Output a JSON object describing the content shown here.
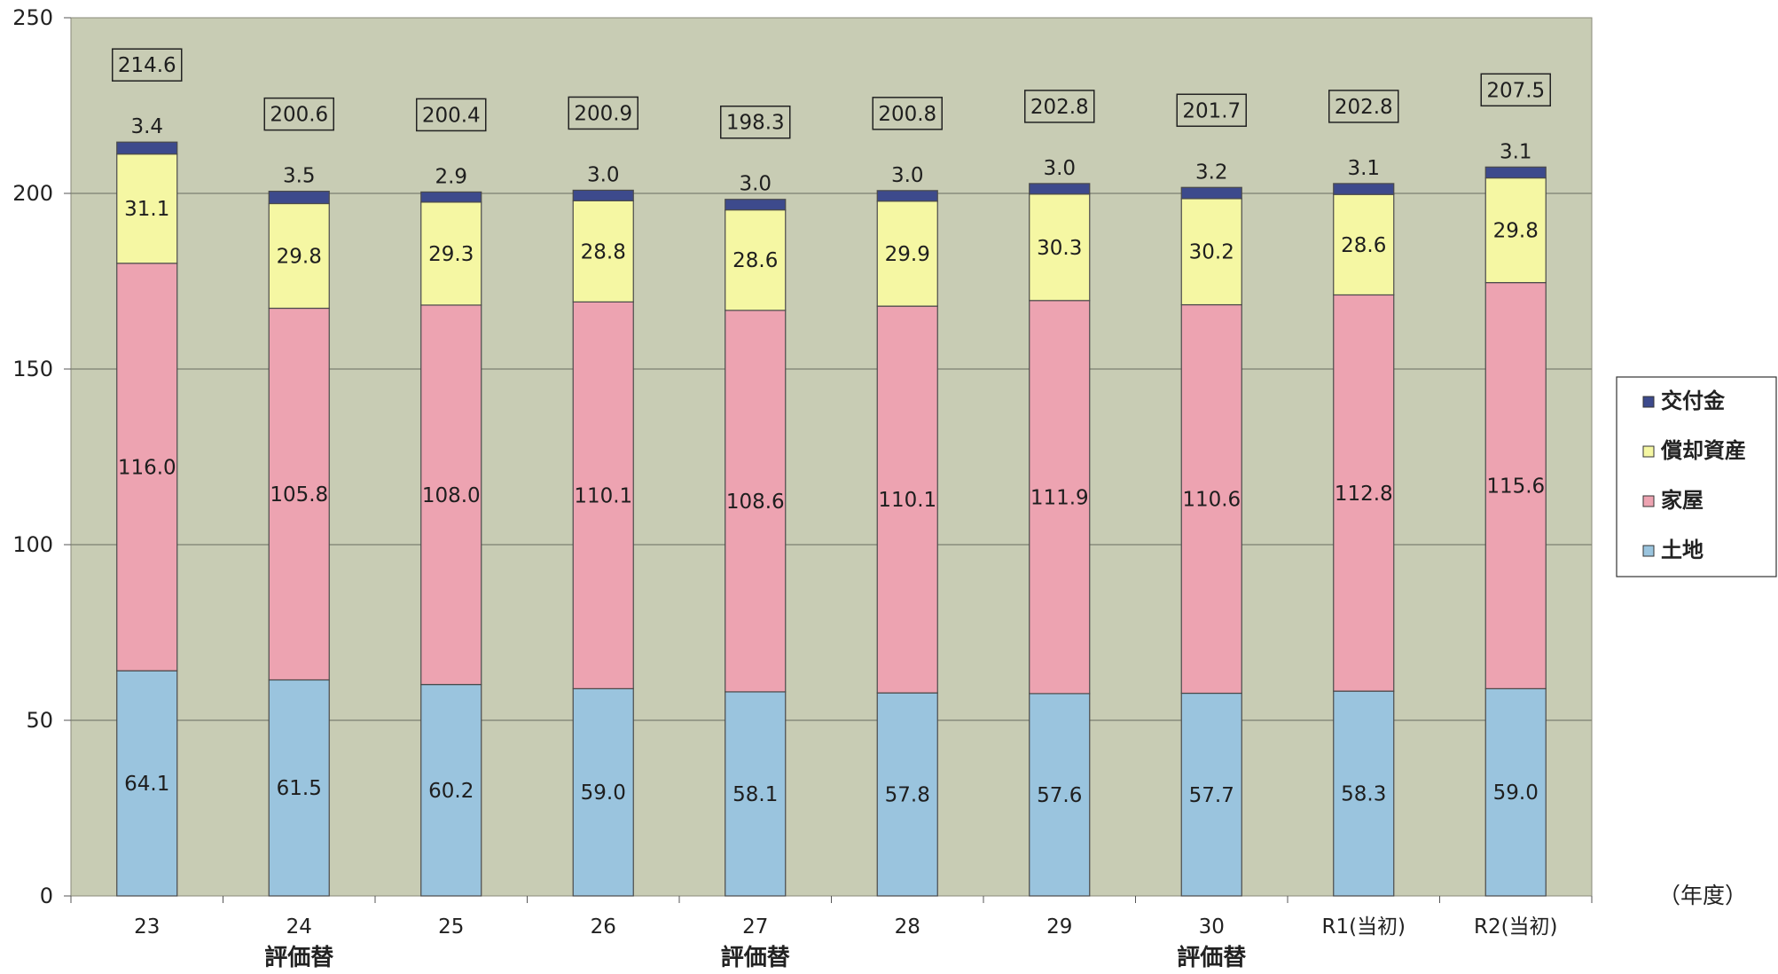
{
  "chart_data": {
    "type": "bar",
    "stacked": true,
    "categories": [
      "23",
      "24",
      "25",
      "26",
      "27",
      "28",
      "29",
      "30",
      "R1(当初)",
      "R2(当初)"
    ],
    "category_notes": [
      "",
      "評価替",
      "",
      "",
      "評価替",
      "",
      "",
      "評価替",
      "",
      ""
    ],
    "series": [
      {
        "name": "土地",
        "color": "#9ac4de",
        "values": [
          64.1,
          61.5,
          60.2,
          59.0,
          58.1,
          57.8,
          57.6,
          57.7,
          58.3,
          59.0
        ]
      },
      {
        "name": "家屋",
        "color": "#eda3b1",
        "values": [
          116.0,
          105.8,
          108.0,
          110.1,
          108.6,
          110.1,
          111.9,
          110.6,
          112.8,
          115.6
        ]
      },
      {
        "name": "償却資産",
        "color": "#f5f7a3",
        "values": [
          31.1,
          29.8,
          29.3,
          28.8,
          28.6,
          29.9,
          30.3,
          30.2,
          28.6,
          29.8
        ]
      },
      {
        "name": "交付金",
        "color": "#3d4a8c",
        "values": [
          3.4,
          3.5,
          2.9,
          3.0,
          3.0,
          3.0,
          3.0,
          3.2,
          3.1,
          3.1
        ]
      }
    ],
    "totals": [
      214.6,
      200.6,
      200.4,
      200.9,
      198.3,
      200.8,
      202.8,
      201.7,
      202.8,
      207.5
    ],
    "segment_labels": [
      [
        "64.1",
        "116.0",
        "31.1",
        "3.4"
      ],
      [
        "61.5",
        "105.8",
        "29.8",
        "3.5"
      ],
      [
        "60.2",
        "108.0",
        "29.3",
        "2.9"
      ],
      [
        "59.0",
        "110.1",
        "28.8",
        "3.0"
      ],
      [
        "58.1",
        "108.6",
        "28.6",
        "3.0"
      ],
      [
        "57.8",
        "110.1",
        "29.9",
        "3.0"
      ],
      [
        "57.6",
        "111.9",
        "30.3",
        "3.0"
      ],
      [
        "57.7",
        "110.6",
        "30.2",
        "3.2"
      ],
      [
        "58.3",
        "112.8",
        "28.6",
        "3.1"
      ],
      [
        "59.0",
        "115.6",
        "29.8",
        "3.1"
      ]
    ],
    "total_labels": [
      "214.6",
      "200.6",
      "200.4",
      "200.9",
      "198.3",
      "200.8",
      "202.8",
      "201.7",
      "202.8",
      "207.5"
    ],
    "ylim": [
      0,
      250
    ],
    "yticks": [
      0,
      50,
      100,
      150,
      200,
      250
    ],
    "xlabel": "（年度）",
    "ylabel": "",
    "title": "",
    "grid": true,
    "legend_position": "right",
    "legend_order": [
      "交付金",
      "償却資産",
      "家屋",
      "土地"
    ],
    "plot_background": "#c8ccb4"
  }
}
